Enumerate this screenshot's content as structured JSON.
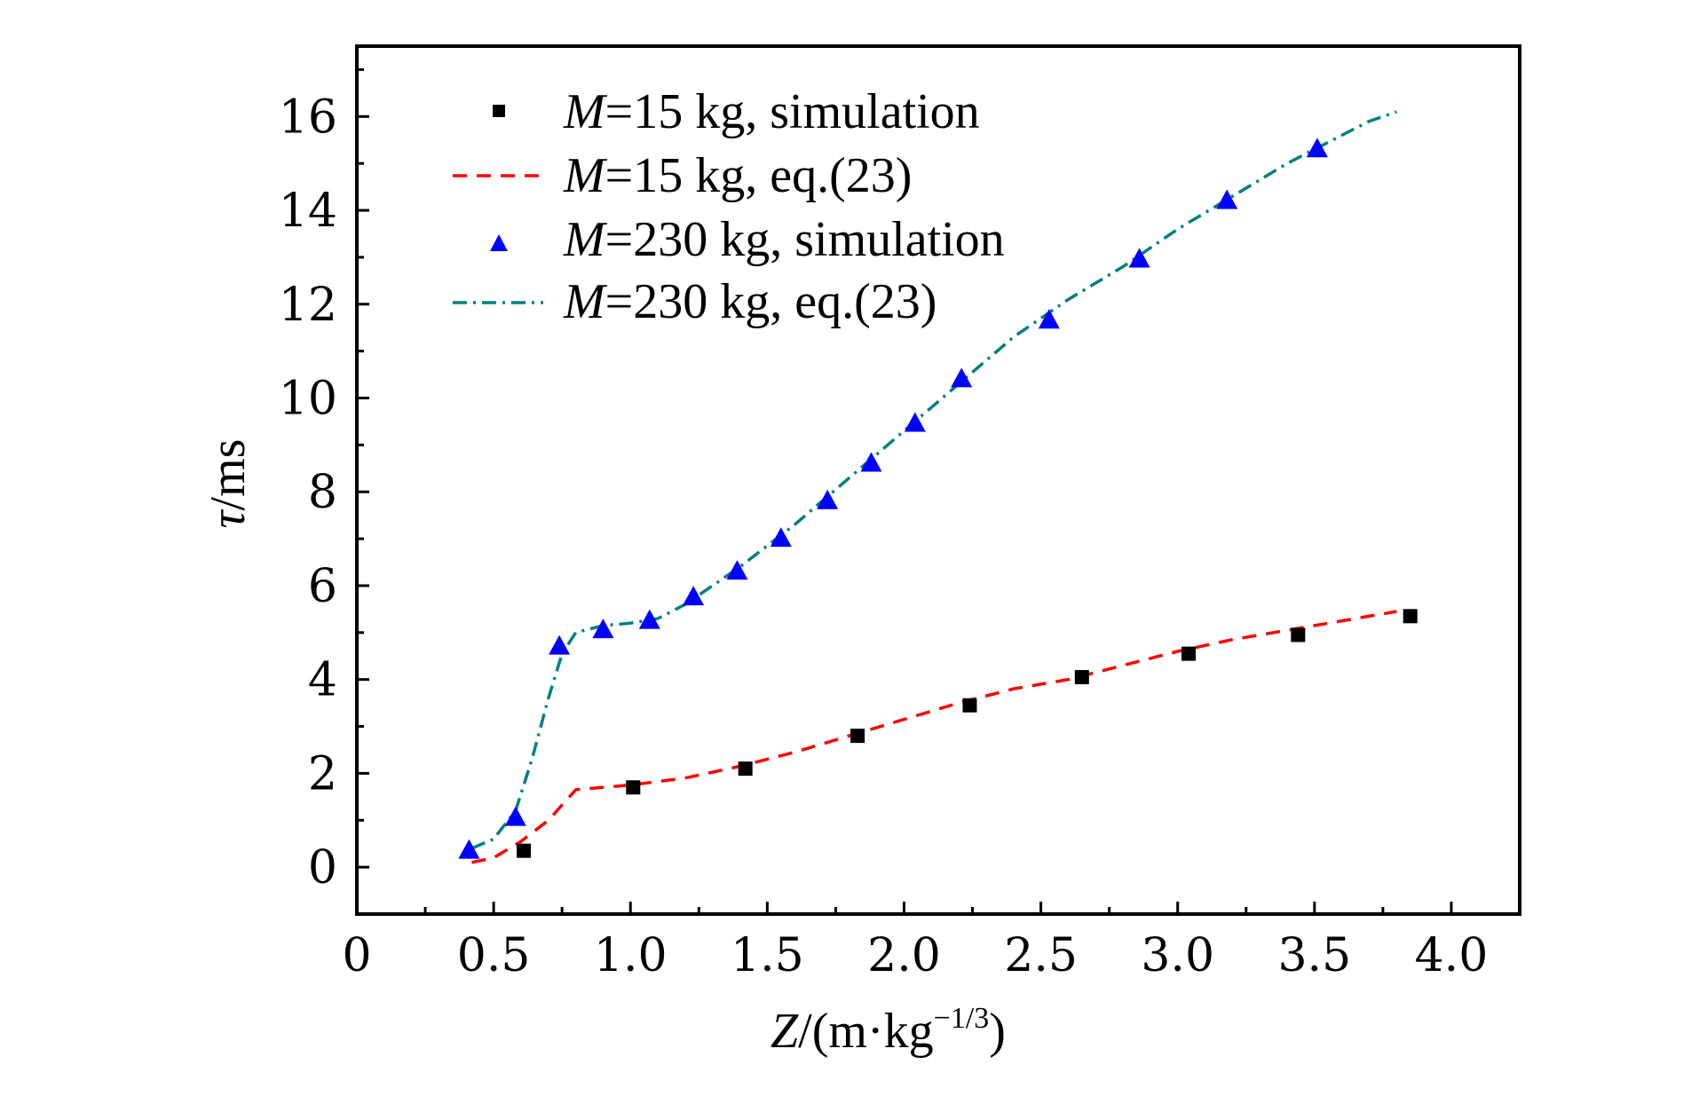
{
  "chart_data": {
    "type": "line",
    "title": "",
    "xlabel": {
      "var": "Z",
      "unit_prefix": "/(m·kg",
      "unit_exp": "−1/3",
      "unit_suffix": ")"
    },
    "ylabel": {
      "var": "τ",
      "unit": "/ms"
    },
    "xlim": [
      0,
      4.25
    ],
    "ylim": [
      -1,
      17.5
    ],
    "xticks": [
      0,
      0.5,
      1.0,
      1.5,
      2.0,
      2.5,
      3.0,
      3.5,
      4.0
    ],
    "xtick_labels": [
      "0",
      "0.5",
      "1.0",
      "1.5",
      "2.0",
      "2.5",
      "3.0",
      "3.5",
      "4.0"
    ],
    "yticks": [
      0,
      2,
      4,
      6,
      8,
      10,
      12,
      14,
      16
    ],
    "ytick_labels": [
      "0",
      "2",
      "4",
      "6",
      "8",
      "10",
      "12",
      "14",
      "16"
    ],
    "grid": false,
    "legend_position": "top-left",
    "series": [
      {
        "name": "M=15 kg, simulation",
        "legend_var": "M",
        "legend_rest": "=15 kg, simulation",
        "kind": "scatter",
        "marker": "square",
        "color": "#000000",
        "x": [
          0.61,
          1.01,
          1.42,
          1.83,
          2.24,
          2.65,
          3.04,
          3.44,
          3.85
        ],
        "y": [
          0.35,
          1.7,
          2.1,
          2.8,
          3.45,
          4.05,
          4.55,
          4.95,
          5.35
        ]
      },
      {
        "name": "M=15 kg, eq.(23)",
        "legend_var": "M",
        "legend_rest": "=15 kg, eq.(23)",
        "kind": "line",
        "dash": "dashed",
        "color": "#ff0000",
        "x": [
          0.42,
          0.5,
          0.6,
          0.7,
          0.8,
          1.0,
          1.2,
          1.4,
          1.6,
          1.8,
          2.0,
          2.2,
          2.4,
          2.6,
          2.8,
          3.0,
          3.2,
          3.4,
          3.6,
          3.8
        ],
        "y": [
          0.1,
          0.2,
          0.55,
          1.0,
          1.65,
          1.75,
          1.9,
          2.15,
          2.45,
          2.8,
          3.15,
          3.5,
          3.8,
          4.0,
          4.3,
          4.6,
          4.85,
          5.05,
          5.25,
          5.45
        ]
      },
      {
        "name": "M=230 kg, simulation",
        "legend_var": "M",
        "legend_rest": "=230 kg, simulation",
        "kind": "scatter",
        "marker": "triangle",
        "color": "#0000ff",
        "x": [
          0.41,
          0.58,
          0.74,
          0.9,
          1.07,
          1.23,
          1.39,
          1.55,
          1.72,
          1.88,
          2.04,
          2.21,
          2.53,
          2.86,
          3.18,
          3.51
        ],
        "y": [
          0.35,
          1.05,
          4.7,
          5.05,
          5.25,
          5.75,
          6.3,
          7.0,
          7.8,
          8.6,
          9.45,
          10.4,
          11.65,
          12.95,
          14.2,
          15.3
        ]
      },
      {
        "name": "M=230 kg, eq.(23)",
        "legend_var": "M",
        "legend_rest": "=230 kg, eq.(23)",
        "kind": "line",
        "dash": "dashdot",
        "color": "#008080",
        "x": [
          0.42,
          0.5,
          0.58,
          0.64,
          0.7,
          0.75,
          0.8,
          0.9,
          1.0,
          1.1,
          1.2,
          1.4,
          1.6,
          1.8,
          2.0,
          2.2,
          2.4,
          2.6,
          2.8,
          3.0,
          3.2,
          3.4,
          3.6,
          3.7,
          3.8
        ],
        "y": [
          0.4,
          0.6,
          1.2,
          2.3,
          3.6,
          4.55,
          5.0,
          5.15,
          5.2,
          5.3,
          5.6,
          6.4,
          7.3,
          8.3,
          9.3,
          10.3,
          11.3,
          12.1,
          12.8,
          13.6,
          14.3,
          15.0,
          15.6,
          15.9,
          16.1
        ]
      }
    ]
  }
}
